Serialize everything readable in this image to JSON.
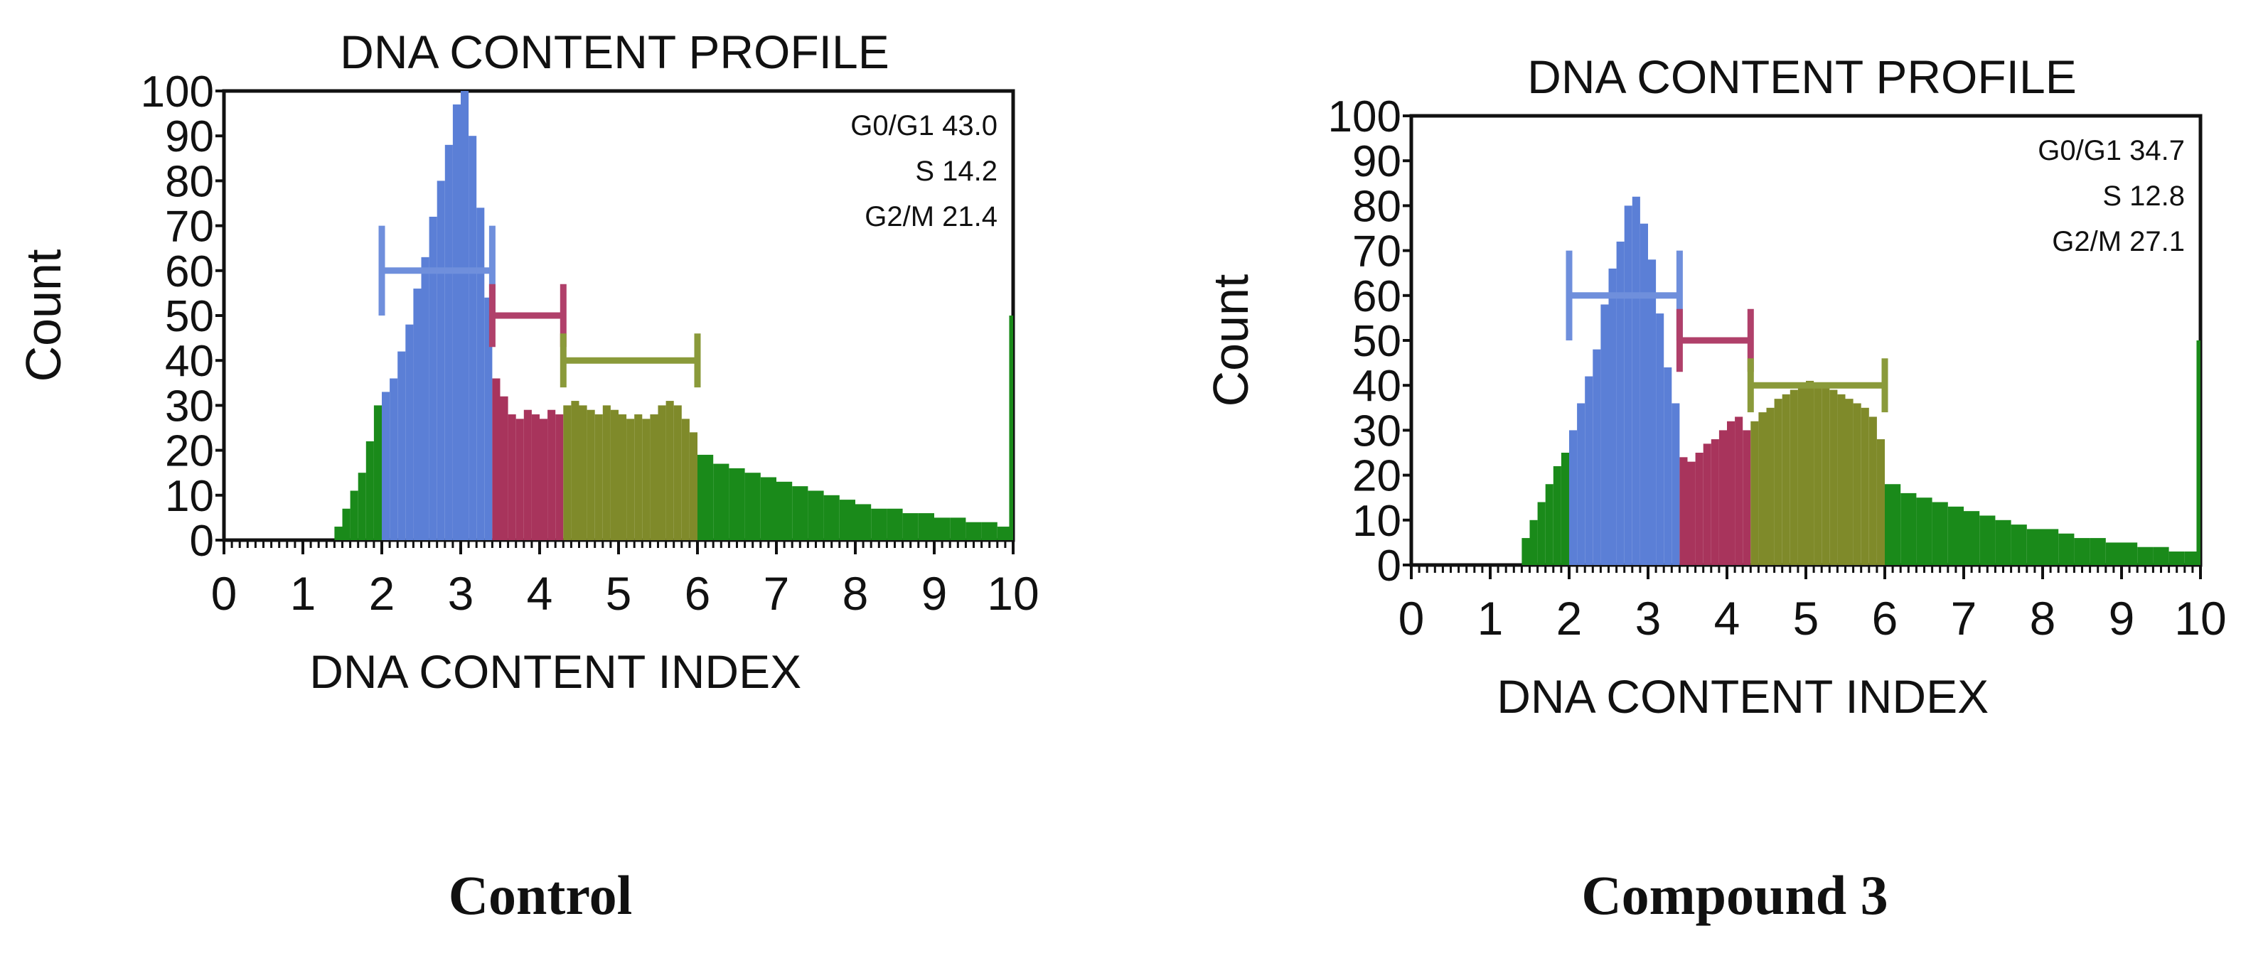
{
  "chart_data": [
    {
      "type": "bar",
      "title": "DNA CONTENT PROFILE",
      "xlabel": "DNA CONTENT INDEX",
      "ylabel": "Count",
      "xlim": [
        0,
        10
      ],
      "ylim": [
        0,
        100
      ],
      "xticks": [
        "0",
        "1",
        "2",
        "3",
        "4",
        "5",
        "6",
        "7",
        "8",
        "9",
        "10"
      ],
      "yticks": [
        "0",
        "10",
        "20",
        "30",
        "40",
        "50",
        "60",
        "70",
        "80",
        "90",
        "100"
      ],
      "caption": "Control",
      "stats": [
        "G0/G1 43.0",
        "S 14.2",
        "G2/M 21.4"
      ],
      "phase_colors": {
        "background": "#1a8a1a",
        "g0g1": "#5b7fd6",
        "s": "#a8345c",
        "g2m": "#7f8a2a",
        "frame": "#1a8a1a"
      },
      "gates": [
        {
          "phase": "g0g1",
          "x_start": 2.0,
          "x_end": 3.4,
          "level": 60,
          "height": 20,
          "color": "#6f8fdc"
        },
        {
          "phase": "s",
          "x_start": 3.4,
          "x_end": 4.3,
          "level": 50,
          "height": 14,
          "color": "#b0406a"
        },
        {
          "phase": "g2m",
          "x_start": 4.3,
          "x_end": 6.0,
          "level": 40,
          "height": 12,
          "color": "#8a9a3a"
        }
      ],
      "peak_value": 100,
      "series": [
        {
          "phase": "background",
          "x": [
            1.3,
            1.4,
            1.5,
            1.6,
            1.7,
            1.8,
            1.9
          ],
          "values": [
            0,
            3,
            7,
            11,
            15,
            22,
            30
          ]
        },
        {
          "phase": "g0g1",
          "x": [
            2.0,
            2.1,
            2.2,
            2.3,
            2.4,
            2.5,
            2.6,
            2.7,
            2.8,
            2.9,
            3.0,
            3.1,
            3.2,
            3.3
          ],
          "values": [
            33,
            36,
            42,
            48,
            56,
            63,
            72,
            80,
            88,
            97,
            100,
            90,
            74,
            54
          ]
        },
        {
          "phase": "s",
          "x": [
            3.4,
            3.5,
            3.6,
            3.7,
            3.8,
            3.9,
            4.0,
            4.1,
            4.2
          ],
          "values": [
            36,
            32,
            28,
            27,
            29,
            28,
            27,
            29,
            28
          ]
        },
        {
          "phase": "g2m",
          "x": [
            4.3,
            4.4,
            4.5,
            4.6,
            4.7,
            4.8,
            4.9,
            5.0,
            5.1,
            5.2,
            5.3,
            5.4,
            5.5,
            5.6,
            5.7,
            5.8,
            5.9
          ],
          "values": [
            30,
            31,
            30,
            29,
            28,
            30,
            29,
            28,
            27,
            28,
            27,
            28,
            30,
            31,
            30,
            27,
            24
          ]
        },
        {
          "phase": "background",
          "x": [
            6.0,
            6.2,
            6.4,
            6.6,
            6.8,
            7.0,
            7.2,
            7.4,
            7.6,
            7.8,
            8.0,
            8.2,
            8.4,
            8.6,
            8.8,
            9.0,
            9.2,
            9.4,
            9.6,
            9.8,
            9.95
          ],
          "values": [
            19,
            17,
            16,
            15,
            14,
            13,
            12,
            11,
            10,
            9,
            8,
            7,
            7,
            6,
            6,
            5,
            5,
            4,
            4,
            3,
            50
          ]
        }
      ]
    },
    {
      "type": "bar",
      "title": "DNA CONTENT PROFILE",
      "xlabel": "DNA CONTENT INDEX",
      "ylabel": "Count",
      "xlim": [
        0,
        10
      ],
      "ylim": [
        0,
        100
      ],
      "xticks": [
        "0",
        "1",
        "2",
        "3",
        "4",
        "5",
        "6",
        "7",
        "8",
        "9",
        "10"
      ],
      "yticks": [
        "0",
        "10",
        "20",
        "30",
        "40",
        "50",
        "60",
        "70",
        "80",
        "90",
        "100"
      ],
      "caption": "Compound 3",
      "stats": [
        "G0/G1 34.7",
        "S 12.8",
        "G2/M 27.1"
      ],
      "phase_colors": {
        "background": "#1a8a1a",
        "g0g1": "#5b7fd6",
        "s": "#a8345c",
        "g2m": "#7f8a2a",
        "frame": "#1a8a1a"
      },
      "gates": [
        {
          "phase": "g0g1",
          "x_start": 2.0,
          "x_end": 3.4,
          "level": 60,
          "height": 20,
          "color": "#6f8fdc"
        },
        {
          "phase": "s",
          "x_start": 3.4,
          "x_end": 4.3,
          "level": 50,
          "height": 14,
          "color": "#b0406a"
        },
        {
          "phase": "g2m",
          "x_start": 4.3,
          "x_end": 6.0,
          "level": 40,
          "height": 12,
          "color": "#8a9a3a"
        }
      ],
      "peak_value": 82,
      "series": [
        {
          "phase": "background",
          "x": [
            1.3,
            1.4,
            1.5,
            1.6,
            1.7,
            1.8,
            1.9
          ],
          "values": [
            0,
            6,
            10,
            14,
            18,
            22,
            25
          ]
        },
        {
          "phase": "g0g1",
          "x": [
            2.0,
            2.1,
            2.2,
            2.3,
            2.4,
            2.5,
            2.6,
            2.7,
            2.8,
            2.9,
            3.0,
            3.1,
            3.2,
            3.3
          ],
          "values": [
            30,
            36,
            42,
            48,
            58,
            66,
            72,
            80,
            82,
            76,
            68,
            56,
            44,
            36
          ]
        },
        {
          "phase": "s",
          "x": [
            3.4,
            3.5,
            3.6,
            3.7,
            3.8,
            3.9,
            4.0,
            4.1,
            4.2
          ],
          "values": [
            24,
            23,
            25,
            27,
            28,
            30,
            32,
            33,
            30
          ]
        },
        {
          "phase": "g2m",
          "x": [
            4.3,
            4.4,
            4.5,
            4.6,
            4.7,
            4.8,
            4.9,
            5.0,
            5.1,
            5.2,
            5.3,
            5.4,
            5.5,
            5.6,
            5.7,
            5.8,
            5.9
          ],
          "values": [
            32,
            34,
            35,
            37,
            38,
            39,
            40,
            41,
            40,
            40,
            39,
            38,
            37,
            36,
            35,
            33,
            28
          ]
        },
        {
          "phase": "background",
          "x": [
            6.0,
            6.2,
            6.4,
            6.6,
            6.8,
            7.0,
            7.2,
            7.4,
            7.6,
            7.8,
            8.0,
            8.2,
            8.4,
            8.6,
            8.8,
            9.0,
            9.2,
            9.4,
            9.6,
            9.8,
            9.95
          ],
          "values": [
            18,
            16,
            15,
            14,
            13,
            12,
            11,
            10,
            9,
            8,
            8,
            7,
            6,
            6,
            5,
            5,
            4,
            4,
            3,
            3,
            50
          ]
        }
      ]
    }
  ]
}
